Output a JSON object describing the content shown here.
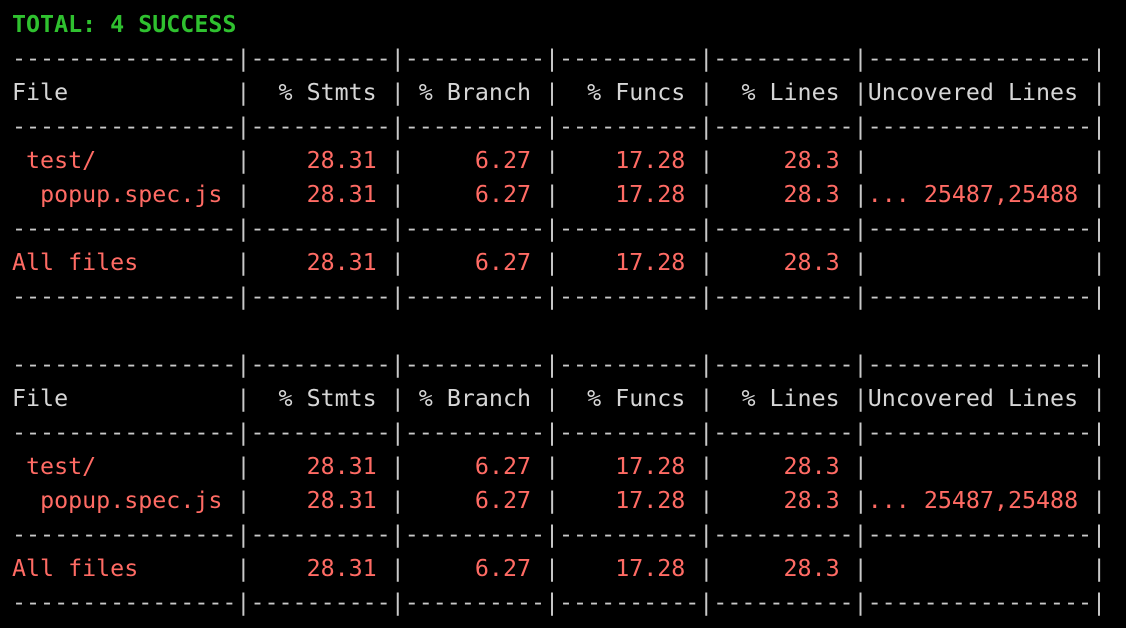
{
  "status": "TOTAL: 4 SUCCESS",
  "tables": [
    {
      "header": [
        "File",
        "% Stmts",
        "% Branch",
        "% Funcs",
        "% Lines",
        "Uncovered Lines"
      ],
      "rows": [
        [
          "test/",
          "28.31",
          "6.27",
          "17.28",
          "28.3"
        ],
        [
          "popup.spec.js",
          "28.31",
          "6.27",
          "17.28",
          "28.3",
          "... 25487,25488"
        ]
      ],
      "total": [
        "All files",
        "28.31",
        "6.27",
        "17.28",
        "28.3"
      ]
    },
    {
      "header": [
        "File",
        "% Stmts",
        "% Branch",
        "% Funcs",
        "% Lines",
        "Uncovered Lines"
      ],
      "rows": [
        [
          "test/",
          "28.31",
          "6.27",
          "17.28",
          "28.3"
        ],
        [
          "popup.spec.js",
          "28.31",
          "6.27",
          "17.28",
          "28.3",
          "... 25487,25488"
        ]
      ],
      "total": [
        "All files",
        "28.31",
        "6.27",
        "17.28",
        "28.3"
      ]
    }
  ]
}
